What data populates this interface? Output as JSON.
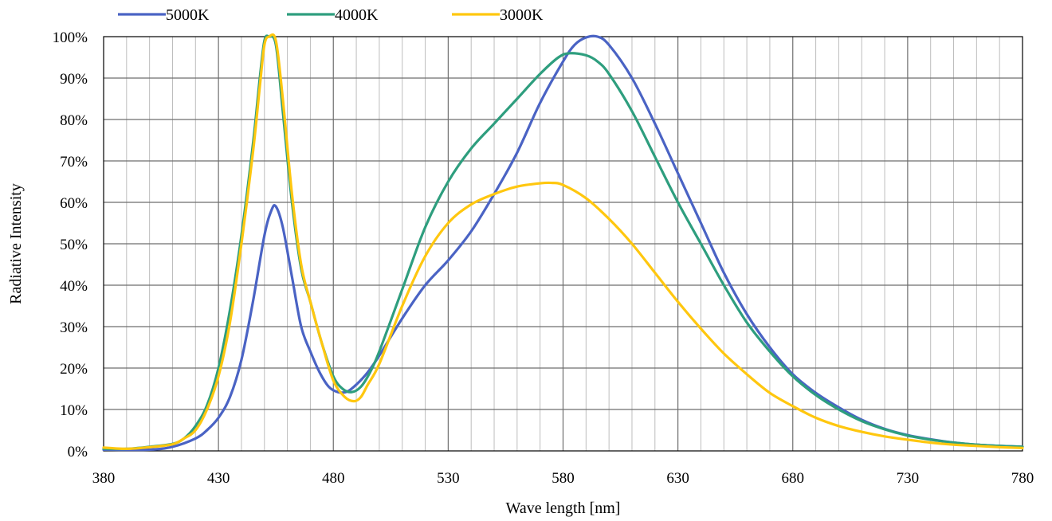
{
  "chart_data": {
    "type": "line",
    "xlabel": "Wave length [nm]",
    "ylabel": "Radiative Intensity",
    "xlim": [
      380,
      780
    ],
    "ylim": [
      0,
      100
    ],
    "x_ticks": [
      "380",
      "430",
      "480",
      "530",
      "580",
      "630",
      "680",
      "730",
      "780"
    ],
    "y_ticks": [
      "0%",
      "10%",
      "20%",
      "30%",
      "40%",
      "50%",
      "60%",
      "70%",
      "80%",
      "90%",
      "100%"
    ],
    "grid": true,
    "legend_position": "top-left",
    "series": [
      {
        "name": "5000K",
        "color": "#4A63C4",
        "points": [
          [
            380,
            0.3
          ],
          [
            400,
            0.3
          ],
          [
            410,
            1
          ],
          [
            420,
            3
          ],
          [
            425,
            5
          ],
          [
            430,
            8
          ],
          [
            435,
            13
          ],
          [
            440,
            22
          ],
          [
            445,
            36
          ],
          [
            450,
            52
          ],
          [
            453,
            58
          ],
          [
            455,
            59
          ],
          [
            458,
            54
          ],
          [
            462,
            42
          ],
          [
            466,
            30
          ],
          [
            470,
            24
          ],
          [
            474,
            19
          ],
          [
            478,
            15.5
          ],
          [
            482,
            14.2
          ],
          [
            486,
            14.3
          ],
          [
            490,
            16
          ],
          [
            495,
            19
          ],
          [
            500,
            23
          ],
          [
            510,
            32
          ],
          [
            520,
            40
          ],
          [
            530,
            46
          ],
          [
            540,
            53
          ],
          [
            550,
            62
          ],
          [
            560,
            72
          ],
          [
            570,
            84
          ],
          [
            580,
            94
          ],
          [
            585,
            98
          ],
          [
            590,
            99.8
          ],
          [
            595,
            100
          ],
          [
            600,
            98
          ],
          [
            610,
            90
          ],
          [
            620,
            79
          ],
          [
            630,
            67
          ],
          [
            640,
            55
          ],
          [
            650,
            43
          ],
          [
            660,
            33
          ],
          [
            670,
            25
          ],
          [
            680,
            18.5
          ],
          [
            690,
            14
          ],
          [
            700,
            10.5
          ],
          [
            710,
            7.5
          ],
          [
            720,
            5.3
          ],
          [
            730,
            3.8
          ],
          [
            740,
            2.8
          ],
          [
            750,
            2
          ],
          [
            760,
            1.5
          ],
          [
            770,
            1.2
          ],
          [
            780,
            1
          ]
        ]
      },
      {
        "name": "4000K",
        "color": "#2E9E7E",
        "points": [
          [
            380,
            0.5
          ],
          [
            390,
            0.5
          ],
          [
            400,
            1
          ],
          [
            410,
            1.7
          ],
          [
            415,
            3
          ],
          [
            420,
            6
          ],
          [
            425,
            11
          ],
          [
            430,
            20
          ],
          [
            435,
            34
          ],
          [
            440,
            52
          ],
          [
            445,
            74
          ],
          [
            448,
            90
          ],
          [
            450,
            99
          ],
          [
            452,
            100
          ],
          [
            455,
            98
          ],
          [
            458,
            82
          ],
          [
            462,
            60
          ],
          [
            466,
            44
          ],
          [
            470,
            36
          ],
          [
            475,
            26
          ],
          [
            480,
            18
          ],
          [
            484,
            15
          ],
          [
            488,
            14.2
          ],
          [
            492,
            15.5
          ],
          [
            496,
            19
          ],
          [
            500,
            24
          ],
          [
            510,
            39
          ],
          [
            520,
            54
          ],
          [
            530,
            65
          ],
          [
            540,
            73
          ],
          [
            550,
            79
          ],
          [
            560,
            85
          ],
          [
            570,
            91
          ],
          [
            578,
            95
          ],
          [
            583,
            96
          ],
          [
            590,
            95.5
          ],
          [
            595,
            94
          ],
          [
            600,
            91
          ],
          [
            610,
            82
          ],
          [
            620,
            71
          ],
          [
            630,
            60
          ],
          [
            640,
            50
          ],
          [
            650,
            40
          ],
          [
            660,
            31
          ],
          [
            670,
            24
          ],
          [
            680,
            18
          ],
          [
            690,
            13.5
          ],
          [
            700,
            10
          ],
          [
            710,
            7.2
          ],
          [
            720,
            5.2
          ],
          [
            730,
            3.7
          ],
          [
            740,
            2.7
          ],
          [
            750,
            2
          ],
          [
            760,
            1.5
          ],
          [
            770,
            1.2
          ],
          [
            780,
            1
          ]
        ]
      },
      {
        "name": "3000K",
        "color": "#FFC70F",
        "points": [
          [
            380,
            0.8
          ],
          [
            390,
            0.5
          ],
          [
            400,
            0.9
          ],
          [
            410,
            1.6
          ],
          [
            415,
            3
          ],
          [
            420,
            5
          ],
          [
            425,
            10
          ],
          [
            430,
            18
          ],
          [
            435,
            31
          ],
          [
            440,
            50
          ],
          [
            445,
            72
          ],
          [
            448,
            88
          ],
          [
            450,
            98
          ],
          [
            452,
            100
          ],
          [
            455,
            99
          ],
          [
            458,
            85
          ],
          [
            462,
            62
          ],
          [
            466,
            45
          ],
          [
            470,
            36
          ],
          [
            475,
            26
          ],
          [
            480,
            17
          ],
          [
            485,
            13
          ],
          [
            489,
            12
          ],
          [
            492,
            13
          ],
          [
            495,
            16
          ],
          [
            500,
            21
          ],
          [
            510,
            35
          ],
          [
            520,
            47
          ],
          [
            530,
            55
          ],
          [
            540,
            59.5
          ],
          [
            550,
            62
          ],
          [
            560,
            63.8
          ],
          [
            570,
            64.6
          ],
          [
            575,
            64.7
          ],
          [
            580,
            64.2
          ],
          [
            590,
            61
          ],
          [
            600,
            56
          ],
          [
            610,
            50
          ],
          [
            620,
            43
          ],
          [
            630,
            36
          ],
          [
            640,
            29.5
          ],
          [
            650,
            23.5
          ],
          [
            660,
            18.5
          ],
          [
            670,
            14
          ],
          [
            680,
            10.8
          ],
          [
            690,
            8
          ],
          [
            700,
            6
          ],
          [
            710,
            4.6
          ],
          [
            720,
            3.5
          ],
          [
            730,
            2.7
          ],
          [
            740,
            2
          ],
          [
            750,
            1.5
          ],
          [
            760,
            1.2
          ],
          [
            770,
            0.9
          ],
          [
            780,
            0.7
          ]
        ]
      }
    ]
  }
}
